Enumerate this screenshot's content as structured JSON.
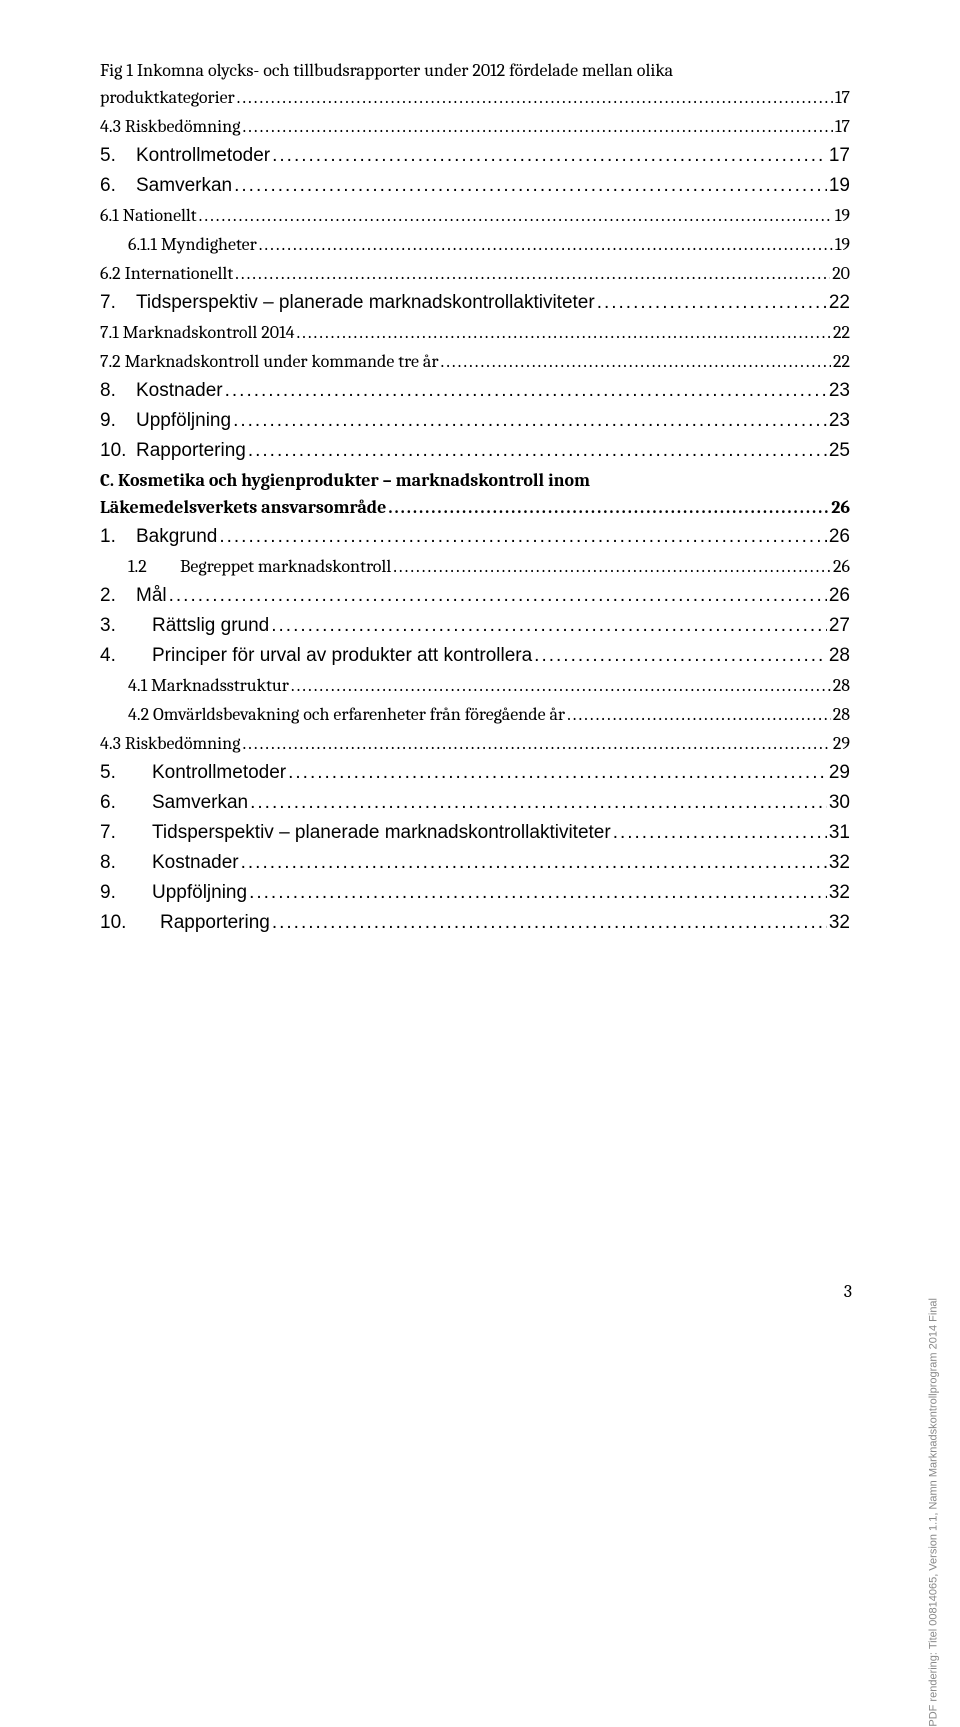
{
  "toc": [
    {
      "text": "Fig 1 Inkomna olycks- och tillbudsrapporter under 2012 fördelade mellan olika",
      "page": "",
      "indent": "indent-0",
      "font": "cambria",
      "size": "fs18",
      "bold": false,
      "dots": false,
      "wrap": true
    },
    {
      "text": "produktkategorier",
      "page": "17",
      "indent": "indent-0",
      "font": "cambria",
      "size": "fs18",
      "bold": false,
      "dots": true
    },
    {
      "text": "4.3 Riskbedömning",
      "page": "17",
      "indent": "indent-0",
      "font": "cambria",
      "size": "fs18",
      "bold": false,
      "dots": true
    },
    {
      "num": "5.",
      "text": "Kontrollmetoder",
      "page": "17",
      "indent": "indent-0",
      "font": "arial",
      "size": "fs19",
      "bold": false,
      "dots": true
    },
    {
      "num": "6.",
      "text": "Samverkan",
      "page": "19",
      "indent": "indent-0",
      "font": "arial",
      "size": "fs19",
      "bold": false,
      "dots": true
    },
    {
      "text": "6.1 Nationellt",
      "page": "19",
      "indent": "indent-0",
      "font": "cambria",
      "size": "fs18",
      "bold": false,
      "dots": true
    },
    {
      "text": "6.1.1 Myndigheter",
      "page": "19",
      "indent": "indent-1",
      "font": "cambria",
      "size": "fs18",
      "bold": false,
      "dots": true
    },
    {
      "text": "6.2 Internationellt",
      "page": "20",
      "indent": "indent-0",
      "font": "cambria",
      "size": "fs18",
      "bold": false,
      "dots": true
    },
    {
      "num": "7.",
      "text": "Tidsperspektiv – planerade marknadskontrollaktiviteter",
      "page": "22",
      "indent": "indent-0",
      "font": "arial",
      "size": "fs19",
      "bold": false,
      "dots": true
    },
    {
      "text": "7.1 Marknadskontroll 2014",
      "page": "22",
      "indent": "indent-0",
      "font": "cambria",
      "size": "fs18",
      "bold": false,
      "dots": true
    },
    {
      "text": "7.2 Marknadskontroll under kommande tre år",
      "page": "22",
      "indent": "indent-0",
      "font": "cambria",
      "size": "fs18",
      "bold": false,
      "dots": true
    },
    {
      "num": "8.",
      "text": "Kostnader",
      "page": "23",
      "indent": "indent-0",
      "font": "arial",
      "size": "fs19",
      "bold": false,
      "dots": true
    },
    {
      "num": "9.",
      "text": "Uppföljning",
      "page": "23",
      "indent": "indent-0",
      "font": "arial",
      "size": "fs19",
      "bold": false,
      "dots": true
    },
    {
      "num": "10.",
      "text": "Rapportering",
      "page": "25",
      "indent": "indent-0",
      "font": "arial",
      "size": "fs19",
      "bold": false,
      "dots": true
    },
    {
      "text": "C. Kosmetika och hygienprodukter – marknadskontroll inom",
      "page": "",
      "indent": "indent-0",
      "font": "cambria",
      "size": "fs18",
      "bold": true,
      "dots": false,
      "wrap": true
    },
    {
      "text": "Läkemedelsverkets ansvarsområde",
      "page": "26",
      "indent": "indent-0",
      "font": "cambria",
      "size": "fs18",
      "bold": true,
      "dots": true
    },
    {
      "num": "1.",
      "text": "Bakgrund",
      "page": "26",
      "indent": "indent-0",
      "font": "arial",
      "size": "fs19",
      "bold": false,
      "dots": true
    },
    {
      "num": "1.2",
      "text": "Begreppet marknadskontroll",
      "page": "26",
      "indent": "indent-1",
      "font": "cambria",
      "size": "fs18",
      "bold": false,
      "dots": true,
      "tab": true
    },
    {
      "num": "2.",
      "text": "Mål",
      "page": "26",
      "indent": "indent-0",
      "font": "arial",
      "size": "fs19",
      "bold": false,
      "dots": true
    },
    {
      "num": "3.",
      "text": "Rättslig grund",
      "page": "27",
      "indent": "indent-0",
      "font": "arial",
      "size": "fs19",
      "bold": false,
      "dots": true,
      "tab": true
    },
    {
      "num": "4.",
      "text": "Principer för urval av produkter att kontrollera",
      "page": "28",
      "indent": "indent-0",
      "font": "arial",
      "size": "fs19",
      "bold": false,
      "dots": true,
      "tab": true
    },
    {
      "text": "4.1 Marknadsstruktur",
      "page": "28",
      "indent": "indent-1",
      "font": "cambria",
      "size": "fs18",
      "bold": false,
      "dots": true
    },
    {
      "text": "4.2 Omvärldsbevakning och erfarenheter från föregående år",
      "page": "28",
      "indent": "indent-1",
      "font": "cambria",
      "size": "fs18",
      "bold": false,
      "dots": true
    },
    {
      "text": "4.3 Riskbedömning",
      "page": "29",
      "indent": "indent-0",
      "font": "cambria",
      "size": "fs18",
      "bold": false,
      "dots": true
    },
    {
      "num": "5.",
      "text": "Kontrollmetoder",
      "page": "29",
      "indent": "indent-0",
      "font": "arial",
      "size": "fs19",
      "bold": false,
      "dots": true,
      "tab": true
    },
    {
      "num": "6.",
      "text": "Samverkan",
      "page": "30",
      "indent": "indent-0",
      "font": "arial",
      "size": "fs19",
      "bold": false,
      "dots": true,
      "tab": true
    },
    {
      "num": "7.",
      "text": "Tidsperspektiv – planerade marknadskontrollaktiviteter",
      "page": "31",
      "indent": "indent-0",
      "font": "arial",
      "size": "fs19",
      "bold": false,
      "dots": true,
      "tab": true
    },
    {
      "num": "8.",
      "text": "Kostnader",
      "page": "32",
      "indent": "indent-0",
      "font": "arial",
      "size": "fs19",
      "bold": false,
      "dots": true,
      "tab": true
    },
    {
      "num": "9.",
      "text": "Uppföljning",
      "page": "32",
      "indent": "indent-0",
      "font": "arial",
      "size": "fs19",
      "bold": false,
      "dots": true,
      "tab": true
    },
    {
      "num": "10.",
      "text": "Rapportering",
      "page": "32",
      "indent": "indent-0",
      "font": "arial",
      "size": "fs19",
      "bold": false,
      "dots": true,
      "tab": true,
      "wide": true
    }
  ],
  "footer": {
    "page_number": "3"
  },
  "side_label": "PDF rendering: Titel 00814065, Version 1.1, Namn Marknadskontrollprogram 2014 Final"
}
